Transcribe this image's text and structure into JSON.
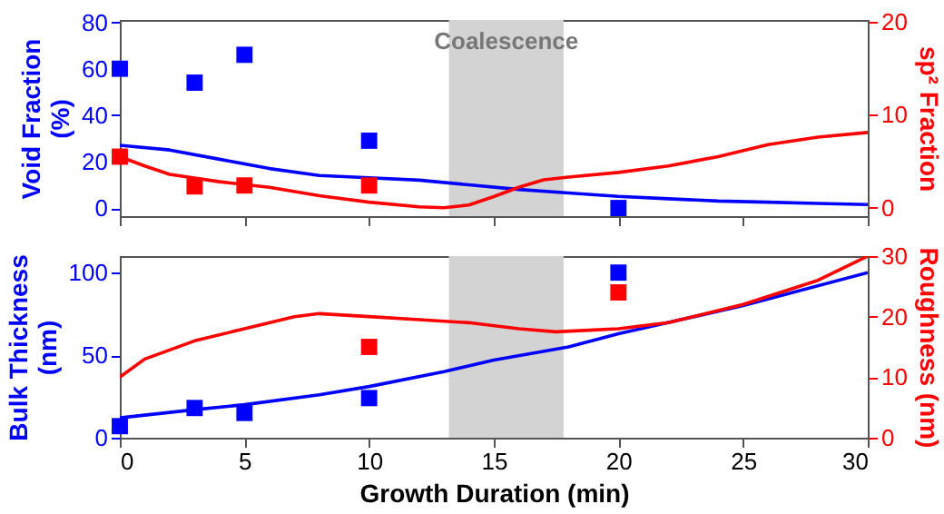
{
  "chart_data": [
    {
      "type": "line",
      "ylabel": "Void Fraction (%)",
      "y2label": "sp² Fraction",
      "xlim": [
        0,
        30
      ],
      "xticks": [
        0,
        5,
        10,
        15,
        20,
        25,
        30
      ],
      "ylim": [
        -3.5,
        81
      ],
      "yticks": [
        0,
        20,
        40,
        60,
        80
      ],
      "y2lim": [
        -0.9,
        20.2
      ],
      "y2ticks": [
        0,
        10,
        20
      ],
      "tick_labels": "y",
      "grid": false,
      "legend": false,
      "bands": [
        {
          "axis": "x",
          "from": 13.2,
          "to": 17.8,
          "label": "Coalescence",
          "color": "#d3d3d3"
        }
      ],
      "series": [
        {
          "type": "line",
          "color": "#0000ff",
          "x": [
            0,
            2,
            4,
            6,
            8,
            10,
            12,
            14,
            16,
            18,
            20,
            22,
            24,
            26,
            28,
            30
          ],
          "values": [
            27,
            25,
            21,
            17,
            14,
            13,
            12,
            10,
            8,
            6.5,
            5,
            4,
            3,
            2.5,
            2,
            1.5
          ]
        },
        {
          "type": "line",
          "axis": "y2",
          "color": "#ff0000",
          "x": [
            0,
            1,
            2,
            4,
            6,
            8,
            10,
            12,
            13,
            14,
            15,
            16,
            17,
            18,
            20,
            22,
            24,
            26,
            28,
            30
          ],
          "values": [
            5.5,
            4.5,
            3.6,
            2.8,
            2.2,
            1.3,
            0.6,
            0.1,
            0,
            0.3,
            1.2,
            2.2,
            3,
            3.3,
            3.8,
            4.5,
            5.5,
            6.8,
            7.6,
            8.1
          ]
        },
        {
          "type": "scatter",
          "marker": "square",
          "color": "#0000ff",
          "x": [
            0,
            3,
            5,
            10,
            20
          ],
          "values": [
            60,
            54,
            66,
            29,
            0
          ]
        },
        {
          "type": "scatter",
          "marker": "square",
          "axis": "y2",
          "color": "#ff0000",
          "x": [
            0,
            3,
            5,
            10
          ],
          "values": [
            5.5,
            2.3,
            2.4,
            2.4
          ]
        }
      ]
    },
    {
      "type": "line",
      "xlabel": "Growth Duration (min)",
      "ylabel": "Bulk Thickness (nm)",
      "y2label": "Roughness (nm)",
      "xlim": [
        0,
        30
      ],
      "xticks": [
        0,
        5,
        10,
        15,
        20,
        25,
        30
      ],
      "ylim": [
        0,
        110
      ],
      "yticks": [
        0,
        50,
        100
      ],
      "y2lim": [
        0,
        30
      ],
      "y2ticks": [
        0,
        10,
        20,
        30
      ],
      "grid": false,
      "legend": false,
      "bands": [
        {
          "axis": "x",
          "from": 13.2,
          "to": 17.8,
          "color": "#d3d3d3"
        }
      ],
      "series": [
        {
          "type": "line",
          "color": "#0000ff",
          "x": [
            0,
            3,
            5,
            8,
            10,
            13,
            15,
            18,
            20,
            25,
            30
          ],
          "values": [
            12,
            17,
            20,
            26,
            31,
            40,
            47,
            55,
            63,
            80,
            100
          ]
        },
        {
          "type": "line",
          "axis": "y2",
          "color": "#ff0000",
          "x": [
            0,
            1,
            3,
            5,
            7,
            8,
            10,
            12,
            14,
            16,
            17.5,
            19,
            20,
            22,
            25,
            28,
            30
          ],
          "values": [
            10,
            13,
            16,
            18,
            20,
            20.5,
            20,
            19.5,
            19,
            18,
            17.5,
            17.8,
            18,
            19,
            22,
            26,
            30
          ]
        },
        {
          "type": "scatter",
          "marker": "square",
          "color": "#0000ff",
          "x": [
            0,
            3,
            5,
            10,
            20
          ],
          "values": [
            7,
            18,
            15,
            24,
            100
          ]
        },
        {
          "type": "scatter",
          "marker": "square",
          "axis": "y2",
          "color": "#ff0000",
          "x": [
            10,
            20
          ],
          "values": [
            15,
            24
          ]
        }
      ]
    }
  ]
}
